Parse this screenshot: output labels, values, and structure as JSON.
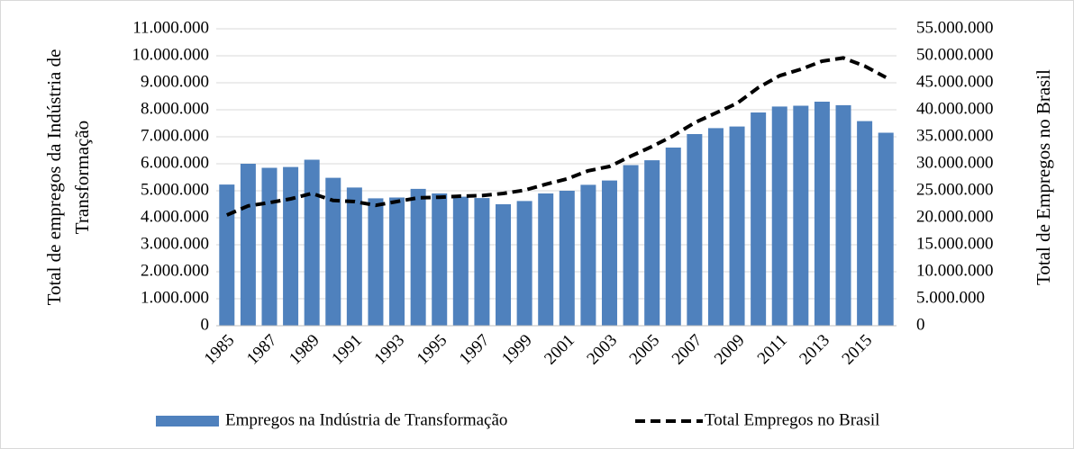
{
  "chart_data": {
    "type": "combo",
    "y_label": [
      "Total de empregos da Indústria de",
      "Transformação"
    ],
    "y2_label": "Total de Empregos no Brasil",
    "categories": [
      "1985",
      null,
      "1987",
      null,
      "1989",
      null,
      "1991",
      null,
      "1993",
      null,
      "1995",
      null,
      "1997",
      null,
      "1999",
      null,
      "2001",
      null,
      "2003",
      null,
      "2005",
      null,
      "2007",
      null,
      "2009",
      null,
      "2011",
      null,
      "2013",
      null,
      "2015",
      null
    ],
    "series": [
      {
        "name": "Empregos na Indústria de Transformação",
        "type": "bar",
        "color": "#4f81bd",
        "axis": "y",
        "values": [
          5230000,
          6000000,
          5850000,
          5880000,
          6150000,
          5480000,
          5120000,
          4720000,
          4750000,
          5070000,
          4900000,
          4780000,
          4730000,
          4500000,
          4620000,
          4900000,
          5000000,
          5220000,
          5380000,
          5950000,
          6130000,
          6600000,
          7100000,
          7320000,
          7380000,
          7900000,
          8120000,
          8150000,
          8300000,
          8170000,
          7580000,
          7150000
        ]
      },
      {
        "name": "Total Empregos no Brasil",
        "type": "line",
        "color": "#000000",
        "axis": "y2",
        "values": [
          20500000,
          22200000,
          22800000,
          23500000,
          24500000,
          23200000,
          23000000,
          22300000,
          23000000,
          23700000,
          23800000,
          24000000,
          24100000,
          24500000,
          25100000,
          26200000,
          27200000,
          28700000,
          29500000,
          31400000,
          33200000,
          35200000,
          37600000,
          39400000,
          41200000,
          44100000,
          46300000,
          47500000,
          49000000,
          49600000,
          48100000,
          46000000
        ]
      }
    ],
    "ylim": [
      0,
      11000000
    ],
    "yticks": [
      0,
      {
        "value": 1000000,
        "label": "1.000.000"
      },
      {
        "value": 2000000,
        "label": "2.000.000"
      },
      {
        "value": 3000000,
        "label": "3.000.000"
      },
      {
        "value": 4000000,
        "label": "4.000.000"
      },
      {
        "value": 5000000,
        "label": "5.000.000"
      },
      {
        "value": 6000000,
        "label": "6.000.000"
      },
      {
        "value": 7000000,
        "label": "7.000.000"
      },
      {
        "value": 8000000,
        "label": "8.000.000"
      },
      {
        "value": 9000000,
        "label": "9.000.000"
      },
      {
        "value": 10000000,
        "label": "10.000.000"
      },
      {
        "value": 11000000,
        "label": "11.000.000"
      }
    ],
    "y2lim": [
      0,
      55000000
    ],
    "y2ticks": [
      0,
      {
        "value": 5000000,
        "label": "5.000.000"
      },
      {
        "value": 10000000,
        "label": "10.000.000"
      },
      {
        "value": 15000000,
        "label": "15.000.000"
      },
      {
        "value": 20000000,
        "label": "20.000.000"
      },
      {
        "value": 25000000,
        "label": "25.000.000"
      },
      {
        "value": 30000000,
        "label": "30.000.000"
      },
      {
        "value": 35000000,
        "label": "35.000.000"
      },
      {
        "value": 40000000,
        "label": "40.000.000"
      },
      {
        "value": 45000000,
        "label": "45.000.000"
      },
      {
        "value": 50000000,
        "label": "50.000.000"
      },
      {
        "value": 55000000,
        "label": "55.000.000"
      }
    ],
    "grid": true,
    "legend": "bottom"
  }
}
